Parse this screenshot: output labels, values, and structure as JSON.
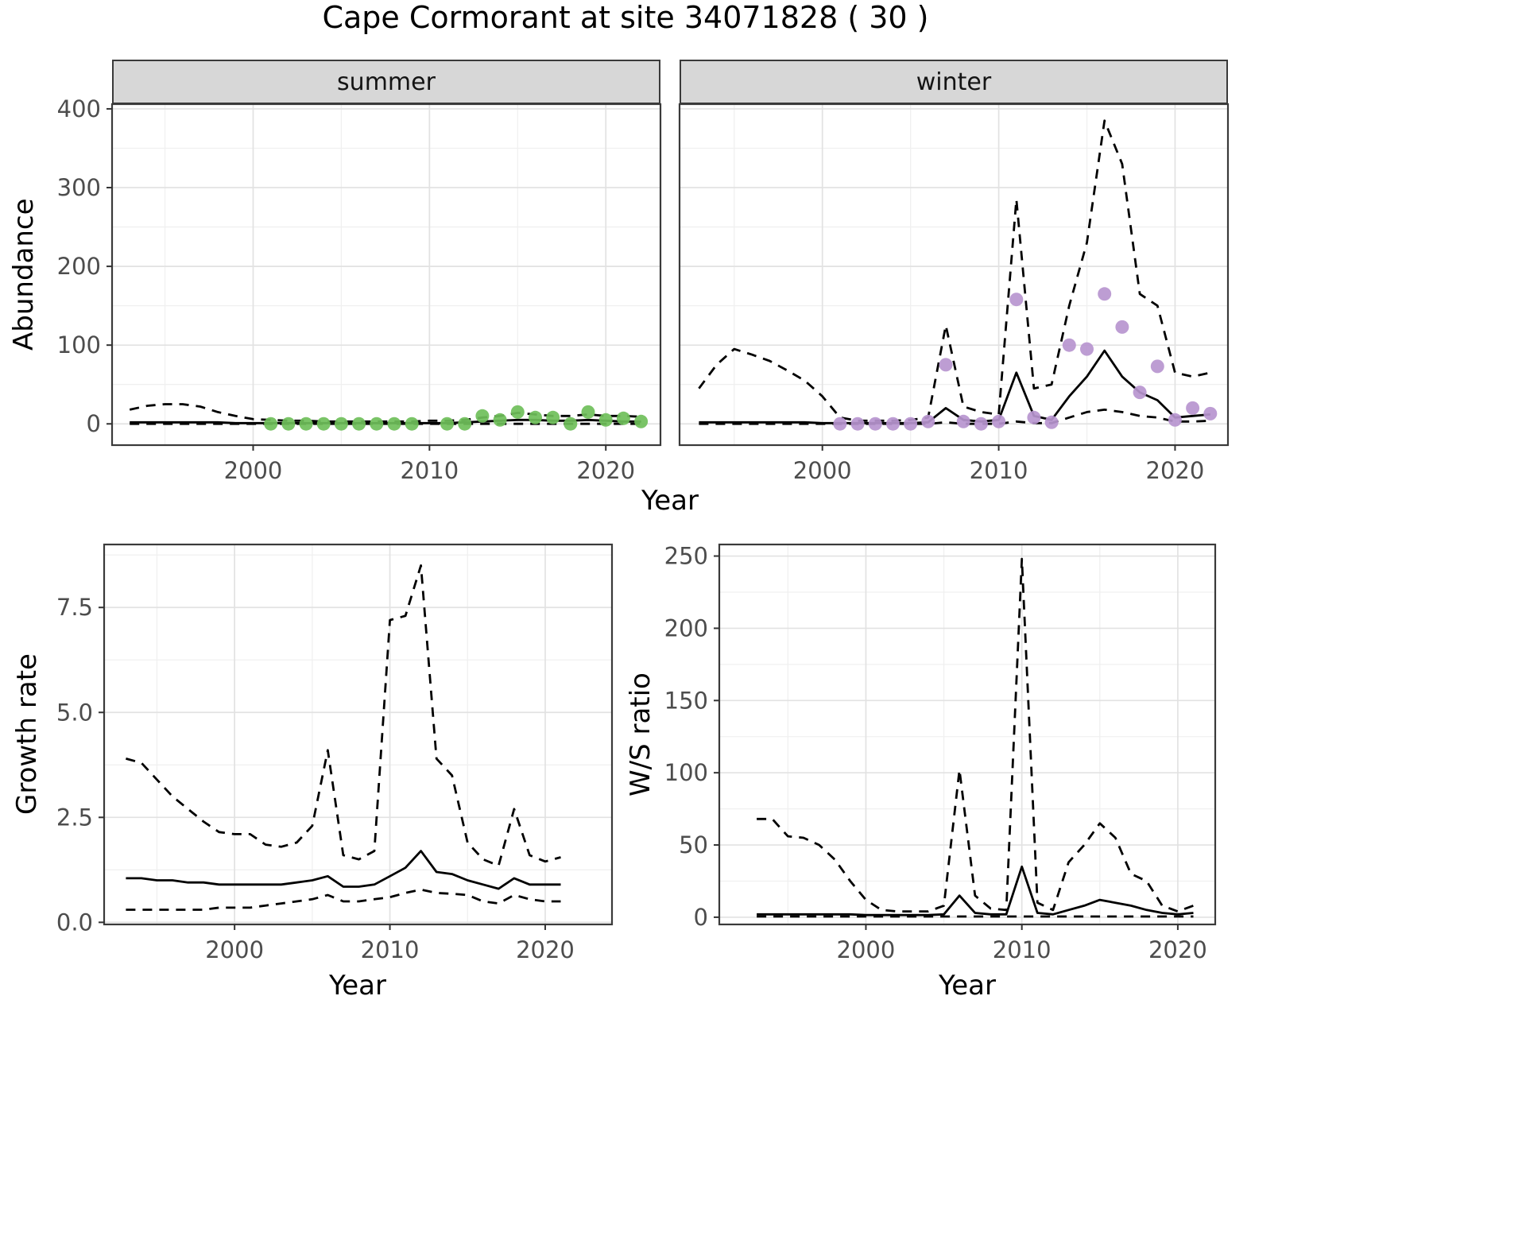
{
  "title": "Cape Cormorant at site 34071828 ( 30 )",
  "facets": {
    "summer": "summer",
    "winter": "winter"
  },
  "axes": {
    "abundance_ylabel": "Abundance",
    "abundance_xlabel": "Year",
    "growth_ylabel": "Growth rate",
    "growth_xlabel": "Year",
    "ratio_ylabel": "W/S ratio",
    "ratio_xlabel": "Year"
  },
  "colors": {
    "summer_points": "#6fbf5a",
    "winter_points": "#b795cf",
    "line": "#000000",
    "strip_bg": "#d7d7d7",
    "grid_major": "#e2e2e2",
    "grid_minor": "#f0f0f0",
    "panel_border": "#3a3a3a",
    "axis_text": "#4d4d4d"
  },
  "chart_data": [
    {
      "id": "abundance_summer",
      "type": "line",
      "facet": "summer",
      "xlabel": "Year",
      "ylabel": "Abundance",
      "xlim": [
        1992.0,
        2023.1
      ],
      "ylim": [
        -27,
        406
      ],
      "xticks": [
        2000,
        2010,
        2020
      ],
      "xtick_labels": [
        "2000",
        "2010",
        "2020"
      ],
      "yticks": [
        0,
        100,
        200,
        300,
        400
      ],
      "ytick_labels": [
        "0",
        "100",
        "200",
        "300",
        "400"
      ],
      "xminor": [
        1995,
        2005,
        2015
      ],
      "yminor": [
        50,
        150,
        250,
        350
      ],
      "show_y_labels": true,
      "series": [
        {
          "name": "ci_upper",
          "style": "dashed",
          "color": "#000000",
          "x": [
            1993,
            1994,
            1995,
            1996,
            1997,
            1998,
            1999,
            2000,
            2001,
            2002,
            2003,
            2004,
            2005,
            2006,
            2007,
            2008,
            2009,
            2010,
            2011,
            2012,
            2013,
            2014,
            2015,
            2016,
            2017,
            2018,
            2019,
            2020,
            2021,
            2022
          ],
          "y": [
            18,
            23,
            25,
            25,
            22,
            15,
            10,
            6,
            5,
            4,
            4,
            3,
            3,
            3,
            3,
            3,
            3,
            4,
            4,
            5,
            8,
            10,
            14,
            12,
            10,
            10,
            12,
            10,
            10,
            9
          ]
        },
        {
          "name": "median",
          "style": "solid",
          "color": "#000000",
          "x": [
            1993,
            1994,
            1995,
            1996,
            1997,
            1998,
            1999,
            2000,
            2001,
            2002,
            2003,
            2004,
            2005,
            2006,
            2007,
            2008,
            2009,
            2010,
            2011,
            2012,
            2013,
            2014,
            2015,
            2016,
            2017,
            2018,
            2019,
            2020,
            2021,
            2022
          ],
          "y": [
            2,
            2,
            2,
            2,
            2,
            2,
            1,
            1,
            1,
            1,
            1,
            1,
            1,
            1,
            1,
            1,
            1,
            1,
            1,
            2,
            3,
            4,
            5,
            5,
            4,
            4,
            5,
            4,
            3,
            3
          ]
        },
        {
          "name": "ci_lower",
          "style": "dashed",
          "color": "#000000",
          "x": [
            1993,
            1994,
            1995,
            1996,
            1997,
            1998,
            1999,
            2000,
            2001,
            2002,
            2003,
            2004,
            2005,
            2006,
            2007,
            2008,
            2009,
            2010,
            2011,
            2012,
            2013,
            2014,
            2015,
            2016,
            2017,
            2018,
            2019,
            2020,
            2021,
            2022
          ],
          "y": [
            0,
            0,
            0,
            0,
            0,
            0,
            0,
            0,
            0,
            0,
            0,
            0,
            0,
            0,
            0,
            0,
            0,
            0,
            0,
            0,
            0,
            0,
            0,
            0,
            0,
            0,
            0,
            0,
            0,
            0
          ]
        },
        {
          "name": "observed_counts",
          "style": "points",
          "color": "#6fbf5a",
          "x": [
            2001,
            2002,
            2003,
            2004,
            2005,
            2006,
            2007,
            2008,
            2009,
            2011,
            2012,
            2013,
            2014,
            2015,
            2016,
            2017,
            2018,
            2019,
            2020,
            2021,
            2022
          ],
          "y": [
            0,
            0,
            0,
            0,
            0,
            0,
            0,
            0,
            0,
            0,
            0,
            10,
            5,
            15,
            8,
            8,
            0,
            15,
            5,
            7,
            3
          ]
        }
      ]
    },
    {
      "id": "abundance_winter",
      "type": "line",
      "facet": "winter",
      "xlabel": "Year",
      "ylabel": "Abundance",
      "xlim": [
        1991.9,
        2023.0
      ],
      "ylim": [
        -27,
        406
      ],
      "xticks": [
        2000,
        2010,
        2020
      ],
      "xtick_labels": [
        "2000",
        "2010",
        "2020"
      ],
      "yticks": [
        0,
        100,
        200,
        300,
        400
      ],
      "ytick_labels": [
        "0",
        "100",
        "200",
        "300",
        "400"
      ],
      "xminor": [
        1995,
        2005,
        2015
      ],
      "yminor": [
        50,
        150,
        250,
        350
      ],
      "show_y_labels": false,
      "series": [
        {
          "name": "ci_upper",
          "style": "dashed",
          "color": "#000000",
          "x": [
            1993,
            1994,
            1995,
            1996,
            1997,
            1998,
            1999,
            2000,
            2001,
            2002,
            2003,
            2004,
            2005,
            2006,
            2007,
            2008,
            2009,
            2010,
            2011,
            2012,
            2013,
            2014,
            2015,
            2016,
            2017,
            2018,
            2019,
            2020,
            2021,
            2022
          ],
          "y": [
            45,
            75,
            95,
            88,
            80,
            68,
            55,
            35,
            8,
            4,
            4,
            4,
            5,
            8,
            125,
            22,
            15,
            12,
            285,
            45,
            50,
            150,
            230,
            385,
            330,
            165,
            150,
            65,
            60,
            65
          ]
        },
        {
          "name": "median",
          "style": "solid",
          "color": "#000000",
          "x": [
            1993,
            1994,
            1995,
            1996,
            1997,
            1998,
            1999,
            2000,
            2001,
            2002,
            2003,
            2004,
            2005,
            2006,
            2007,
            2008,
            2009,
            2010,
            2011,
            2012,
            2013,
            2014,
            2015,
            2016,
            2017,
            2018,
            2019,
            2020,
            2021,
            2022
          ],
          "y": [
            2,
            2,
            2,
            2,
            2,
            2,
            2,
            1,
            1,
            1,
            1,
            1,
            1,
            2,
            20,
            5,
            3,
            5,
            65,
            10,
            5,
            35,
            60,
            93,
            60,
            40,
            30,
            8,
            10,
            12
          ]
        },
        {
          "name": "ci_lower",
          "style": "dashed",
          "color": "#000000",
          "x": [
            1993,
            1994,
            1995,
            1996,
            1997,
            1998,
            1999,
            2000,
            2001,
            2002,
            2003,
            2004,
            2005,
            2006,
            2007,
            2008,
            2009,
            2010,
            2011,
            2012,
            2013,
            2014,
            2015,
            2016,
            2017,
            2018,
            2019,
            2020,
            2021,
            2022
          ],
          "y": [
            0,
            0,
            0,
            0,
            0,
            0,
            0,
            0,
            0,
            0,
            0,
            0,
            0,
            0,
            2,
            0,
            0,
            0,
            3,
            1,
            1,
            8,
            15,
            18,
            15,
            10,
            8,
            3,
            3,
            4
          ]
        },
        {
          "name": "observed_counts",
          "style": "points",
          "color": "#b795cf",
          "x": [
            2001,
            2002,
            2003,
            2004,
            2005,
            2006,
            2007,
            2008,
            2009,
            2010,
            2011,
            2012,
            2013,
            2014,
            2015,
            2016,
            2017,
            2018,
            2019,
            2020,
            2021,
            2022
          ],
          "y": [
            0,
            0,
            0,
            0,
            0,
            3,
            75,
            3,
            0,
            3,
            158,
            8,
            2,
            100,
            95,
            165,
            123,
            40,
            73,
            5,
            20,
            13
          ]
        }
      ]
    },
    {
      "id": "growth_rate",
      "type": "line",
      "xlabel": "Year",
      "ylabel": "Growth rate",
      "xlim": [
        1991.6,
        2024.3
      ],
      "ylim": [
        -0.05,
        9.0
      ],
      "xticks": [
        2000,
        2010,
        2020
      ],
      "xtick_labels": [
        "2000",
        "2010",
        "2020"
      ],
      "yticks": [
        0.0,
        2.5,
        5.0,
        7.5
      ],
      "ytick_labels": [
        "0.0",
        "2.5",
        "5.0",
        "7.5"
      ],
      "xminor": [
        1995,
        2005,
        2015
      ],
      "yminor": [
        1.25,
        3.75,
        6.25,
        8.75
      ],
      "show_y_labels": true,
      "series": [
        {
          "name": "ci_upper",
          "style": "dashed",
          "color": "#000000",
          "x": [
            1993,
            1994,
            1995,
            1996,
            1997,
            1998,
            1999,
            2000,
            2001,
            2002,
            2003,
            2004,
            2005,
            2006,
            2007,
            2008,
            2009,
            2010,
            2011,
            2012,
            2013,
            2014,
            2015,
            2016,
            2017,
            2018,
            2019,
            2020,
            2021
          ],
          "y": [
            3.9,
            3.8,
            3.4,
            3.0,
            2.7,
            2.4,
            2.15,
            2.1,
            2.1,
            1.85,
            1.8,
            1.9,
            2.3,
            4.1,
            1.6,
            1.5,
            1.7,
            7.2,
            7.3,
            8.5,
            3.9,
            3.5,
            1.9,
            1.5,
            1.35,
            2.7,
            1.6,
            1.45,
            1.55
          ]
        },
        {
          "name": "median",
          "style": "solid",
          "color": "#000000",
          "x": [
            1993,
            1994,
            1995,
            1996,
            1997,
            1998,
            1999,
            2000,
            2001,
            2002,
            2003,
            2004,
            2005,
            2006,
            2007,
            2008,
            2009,
            2010,
            2011,
            2012,
            2013,
            2014,
            2015,
            2016,
            2017,
            2018,
            2019,
            2020,
            2021
          ],
          "y": [
            1.05,
            1.05,
            1.0,
            1.0,
            0.95,
            0.95,
            0.9,
            0.9,
            0.9,
            0.9,
            0.9,
            0.95,
            1.0,
            1.1,
            0.85,
            0.85,
            0.9,
            1.1,
            1.3,
            1.7,
            1.2,
            1.15,
            1.0,
            0.9,
            0.8,
            1.05,
            0.9,
            0.9,
            0.9
          ]
        },
        {
          "name": "ci_lower",
          "style": "dashed",
          "color": "#000000",
          "x": [
            1993,
            1994,
            1995,
            1996,
            1997,
            1998,
            1999,
            2000,
            2001,
            2002,
            2003,
            2004,
            2005,
            2006,
            2007,
            2008,
            2009,
            2010,
            2011,
            2012,
            2013,
            2014,
            2015,
            2016,
            2017,
            2018,
            2019,
            2020,
            2021
          ],
          "y": [
            0.3,
            0.3,
            0.3,
            0.3,
            0.3,
            0.3,
            0.35,
            0.35,
            0.35,
            0.4,
            0.45,
            0.5,
            0.55,
            0.65,
            0.5,
            0.5,
            0.55,
            0.6,
            0.7,
            0.78,
            0.7,
            0.68,
            0.65,
            0.5,
            0.45,
            0.65,
            0.55,
            0.5,
            0.5
          ]
        }
      ]
    },
    {
      "id": "ws_ratio",
      "type": "line",
      "xlabel": "Year",
      "ylabel": "W/S ratio",
      "xlim": [
        1990.6,
        2022.4
      ],
      "ylim": [
        -5,
        258
      ],
      "xticks": [
        2000,
        2010,
        2020
      ],
      "xtick_labels": [
        "2000",
        "2010",
        "2020"
      ],
      "yticks": [
        0,
        50,
        100,
        150,
        200,
        250
      ],
      "ytick_labels": [
        "0",
        "50",
        "100",
        "150",
        "200",
        "250"
      ],
      "xminor": [
        1995,
        2005,
        2015
      ],
      "yminor": [
        25,
        75,
        125,
        175,
        225
      ],
      "show_y_labels": true,
      "series": [
        {
          "name": "ci_upper",
          "style": "dashed",
          "color": "#000000",
          "x": [
            1993,
            1994,
            1995,
            1996,
            1997,
            1998,
            1999,
            2000,
            2001,
            2002,
            2003,
            2004,
            2005,
            2006,
            2007,
            2008,
            2009,
            2010,
            2011,
            2012,
            2013,
            2014,
            2015,
            2016,
            2017,
            2018,
            2019,
            2020,
            2021
          ],
          "y": [
            68,
            68,
            56,
            55,
            50,
            40,
            25,
            12,
            5,
            4,
            4,
            4,
            8,
            102,
            15,
            6,
            5,
            248,
            10,
            5,
            38,
            50,
            65,
            55,
            30,
            25,
            8,
            4,
            8
          ]
        },
        {
          "name": "median",
          "style": "solid",
          "color": "#000000",
          "x": [
            1993,
            1994,
            1995,
            1996,
            1997,
            1998,
            1999,
            2000,
            2001,
            2002,
            2003,
            2004,
            2005,
            2006,
            2007,
            2008,
            2009,
            2010,
            2011,
            2012,
            2013,
            2014,
            2015,
            2016,
            2017,
            2018,
            2019,
            2020,
            2021
          ],
          "y": [
            2,
            2,
            2,
            2,
            2,
            2,
            2,
            1.5,
            1.5,
            1.5,
            1.5,
            1.5,
            2,
            15,
            3,
            2,
            2,
            35,
            3,
            2,
            5,
            8,
            12,
            10,
            8,
            5,
            3,
            2,
            3
          ]
        },
        {
          "name": "ci_lower",
          "style": "dashed",
          "color": "#000000",
          "x": [
            1993,
            1994,
            1995,
            1996,
            1997,
            1998,
            1999,
            2000,
            2001,
            2002,
            2003,
            2004,
            2005,
            2006,
            2007,
            2008,
            2009,
            2010,
            2011,
            2012,
            2013,
            2014,
            2015,
            2016,
            2017,
            2018,
            2019,
            2020,
            2021
          ],
          "y": [
            0.5,
            0.5,
            0.5,
            0.5,
            0.5,
            0.5,
            0.5,
            0.5,
            0.5,
            0.5,
            0.5,
            0.5,
            0.5,
            0.5,
            0.5,
            0.5,
            0.5,
            0.5,
            0.5,
            0.5,
            0.5,
            0.5,
            0.5,
            0.5,
            0.5,
            0.5,
            0.5,
            0.5,
            0.5
          ]
        }
      ]
    }
  ]
}
